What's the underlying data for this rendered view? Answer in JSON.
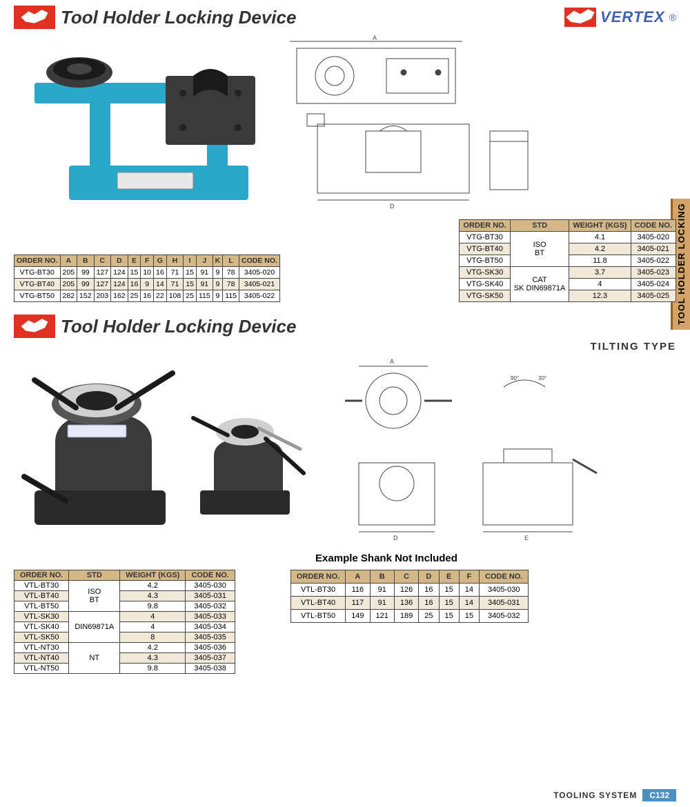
{
  "header1": {
    "title": "Tool Holder Locking Device",
    "brand": "VERTEX"
  },
  "header2": {
    "title": "Tool Holder Locking Device",
    "subtitle": "TILTING TYPE"
  },
  "sideTab": "TOOL HOLDER LOCKING",
  "note": "Example Shank Not Included",
  "footer": {
    "label": "TOOLING SYSTEM",
    "page": "C132"
  },
  "colors": {
    "headerBg": "#d4b888",
    "altRow": "#f0e8d8",
    "tabBg": "#d4a368",
    "logoRed": "#e03020",
    "brandBlue": "#4060b0",
    "footerBadge": "#4a90c0",
    "productBlue": "#2aa8c8",
    "productDark": "#3a3a3a"
  },
  "table1": {
    "headers": [
      "ORDER NO.",
      "A",
      "B",
      "C",
      "D",
      "E",
      "F",
      "G",
      "H",
      "I",
      "J",
      "K",
      "L",
      "CODE NO."
    ],
    "rows": [
      [
        "VTG-BT30",
        "205",
        "99",
        "127",
        "124",
        "15",
        "10",
        "16",
        "71",
        "15",
        "91",
        "9",
        "78",
        "3405-020"
      ],
      [
        "VTG-BT40",
        "205",
        "99",
        "127",
        "124",
        "16",
        "9",
        "14",
        "71",
        "15",
        "91",
        "9",
        "78",
        "3405-021"
      ],
      [
        "VTG-BT50",
        "282",
        "152",
        "203",
        "162",
        "25",
        "16",
        "22",
        "108",
        "25",
        "115",
        "9",
        "115",
        "3405-022"
      ]
    ]
  },
  "table2": {
    "headers": [
      "ORDER NO.",
      "STD",
      "WEIGHT (KGS)",
      "CODE NO."
    ],
    "rows": [
      {
        "order": "VTG-BT30",
        "std": "ISO BT",
        "stdSpan": 3,
        "weight": "4.1",
        "code": "3405-020"
      },
      {
        "order": "VTG-BT40",
        "weight": "4.2",
        "code": "3405-021"
      },
      {
        "order": "VTG-BT50",
        "weight": "11.8",
        "code": "3405-022"
      },
      {
        "order": "VTG-SK30",
        "std": "CAT SK DIN69871A",
        "stdSpan": 3,
        "weight": "3.7",
        "code": "3405-023"
      },
      {
        "order": "VTG-SK40",
        "weight": "4",
        "code": "3405-024"
      },
      {
        "order": "VTG-SK50",
        "weight": "12.3",
        "code": "3405-025"
      }
    ]
  },
  "table3": {
    "headers": [
      "ORDER NO.",
      "STD",
      "WEIGHT (KGS)",
      "CODE NO."
    ],
    "rows": [
      {
        "order": "VTL-BT30",
        "std": "ISO BT",
        "stdSpan": 3,
        "weight": "4.2",
        "code": "3405-030"
      },
      {
        "order": "VTL-BT40",
        "weight": "4.3",
        "code": "3405-031"
      },
      {
        "order": "VTL-BT50",
        "weight": "9.8",
        "code": "3405-032"
      },
      {
        "order": "VTL-SK30",
        "std": "DIN69871A",
        "stdSpan": 3,
        "weight": "4",
        "code": "3405-033"
      },
      {
        "order": "VTL-SK40",
        "weight": "4",
        "code": "3405-034"
      },
      {
        "order": "VTL-SK50",
        "weight": "8",
        "code": "3405-035"
      },
      {
        "order": "VTL-NT30",
        "std": "NT",
        "stdSpan": 3,
        "weight": "4.2",
        "code": "3405-036"
      },
      {
        "order": "VTL-NT40",
        "weight": "4.3",
        "code": "3405-037"
      },
      {
        "order": "VTL-NT50",
        "weight": "9.8",
        "code": "3405-038"
      }
    ]
  },
  "table4": {
    "headers": [
      "ORDER NO.",
      "A",
      "B",
      "C",
      "D",
      "E",
      "F",
      "CODE NO."
    ],
    "rows": [
      [
        "VTL-BT30",
        "116",
        "91",
        "126",
        "16",
        "15",
        "14",
        "3405-030"
      ],
      [
        "VTL-BT40",
        "117",
        "91",
        "136",
        "16",
        "15",
        "14",
        "3405-031"
      ],
      [
        "VTL-BT50",
        "149",
        "121",
        "189",
        "25",
        "15",
        "15",
        "3405-032"
      ]
    ]
  }
}
